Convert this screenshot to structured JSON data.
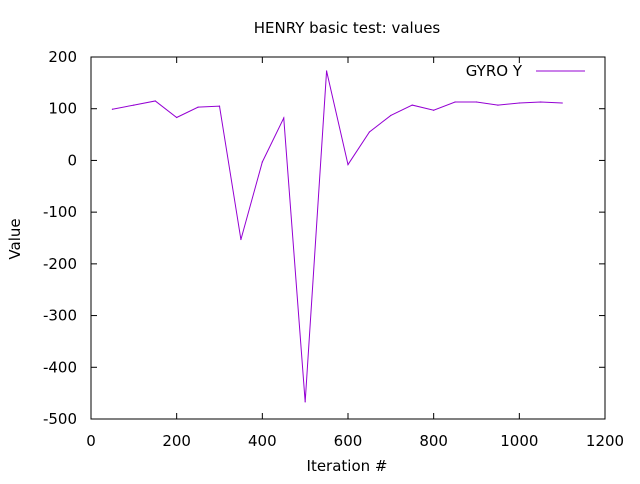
{
  "chart_data": {
    "type": "line",
    "title": "HENRY basic test: values",
    "xlabel": "Iteration #",
    "ylabel": "Value",
    "xlim": [
      0,
      1200
    ],
    "ylim": [
      -500,
      200
    ],
    "x_ticks": [
      0,
      200,
      400,
      600,
      800,
      1000,
      1200
    ],
    "y_ticks": [
      200,
      100,
      0,
      -100,
      -200,
      -300,
      -400,
      -500
    ],
    "grid": false,
    "legend_position": "top-right",
    "series": [
      {
        "name": "GYRO Y",
        "color": "#9400d3",
        "x": [
          50,
          100,
          150,
          200,
          250,
          300,
          350,
          400,
          450,
          500,
          550,
          600,
          650,
          700,
          750,
          800,
          850,
          900,
          950,
          1000,
          1050,
          1100
        ],
        "values": [
          99,
          107,
          115,
          83,
          103,
          105,
          -153,
          -3,
          82,
          -467,
          173,
          -8,
          55,
          87,
          107,
          97,
          113,
          113,
          107,
          111,
          113,
          111
        ]
      }
    ]
  }
}
